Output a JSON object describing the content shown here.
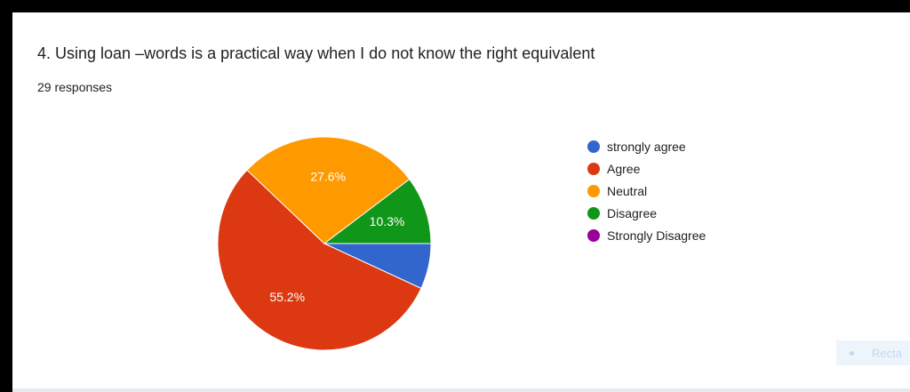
{
  "question": {
    "title": "4. Using loan –words is a practical way when I do not know the right equivalent",
    "responses": "29 responses"
  },
  "chart_data": {
    "type": "pie",
    "title": "4. Using loan –words is a practical way when I do not know the right equivalent",
    "categories": [
      "strongly agree",
      "Agree",
      "Neutral",
      "Disagree",
      "Strongly Disagree"
    ],
    "values": [
      6.9,
      55.2,
      27.6,
      10.3,
      0
    ],
    "counts": [
      2,
      16,
      8,
      3,
      0
    ],
    "data_labels": [
      "",
      "55.2%",
      "27.6%",
      "10.3%",
      ""
    ],
    "colors": [
      "#3366cc",
      "#dc3912",
      "#ff9900",
      "#109618",
      "#990099"
    ],
    "legend_position": "right",
    "start_angle": "3 o'clock",
    "direction": "clockwise"
  },
  "overlay": {
    "text": "Recta"
  }
}
